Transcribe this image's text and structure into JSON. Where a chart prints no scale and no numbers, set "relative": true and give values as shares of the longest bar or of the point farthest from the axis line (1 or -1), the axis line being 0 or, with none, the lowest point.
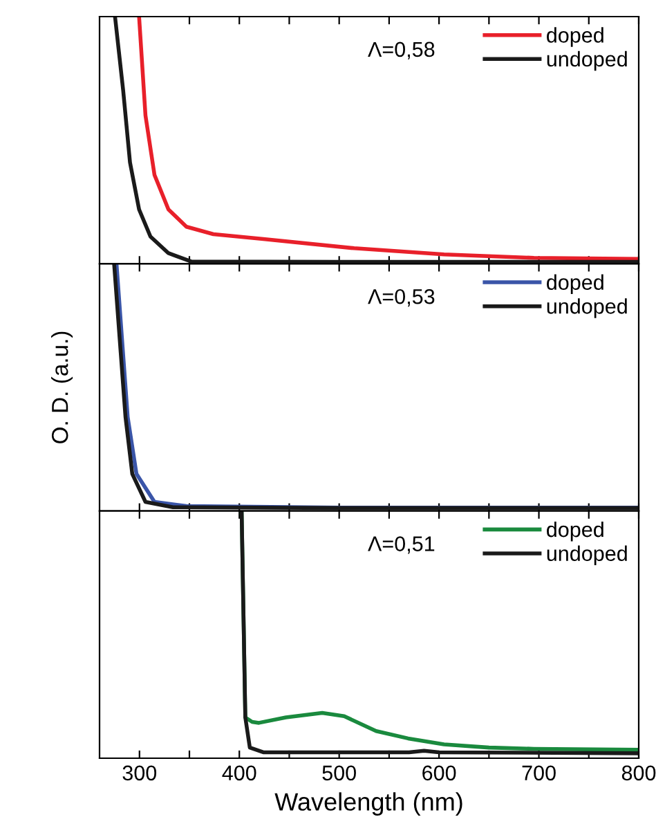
{
  "chart_data": [
    {
      "type": "line",
      "relative": true,
      "xlim": [
        260,
        800
      ],
      "xticks": [
        {
          "value": 300,
          "label": null
        },
        {
          "value": 350,
          "label": null
        },
        {
          "value": 400,
          "label": null
        },
        {
          "value": 450,
          "label": null
        },
        {
          "value": 500,
          "label": null
        },
        {
          "value": 550,
          "label": null
        },
        {
          "value": 600,
          "label": null
        },
        {
          "value": 650,
          "label": null
        },
        {
          "value": 700,
          "label": null
        },
        {
          "value": 750,
          "label": null
        },
        {
          "value": 800,
          "label": null
        }
      ],
      "tick_labels": false,
      "legend": "top right",
      "annotations": [
        "Λ=0,58"
      ],
      "series": [
        {
          "name": "doped",
          "color": "#e8202a",
          "x": [
            299.6,
            306,
            315,
            329,
            347,
            374,
            424,
            515,
            605,
            695,
            800
          ],
          "values": [
            1,
            0.6,
            0.36,
            0.22,
            0.15,
            0.12,
            0.1,
            0.063,
            0.038,
            0.024,
            0.02
          ]
        },
        {
          "name": "undoped",
          "color": "#1a1a1a",
          "x": [
            275.5,
            283.7,
            290.5,
            299.6,
            311,
            329,
            352,
            500,
            800
          ],
          "values": [
            1,
            0.7,
            0.41,
            0.22,
            0.11,
            0.043,
            0.009,
            0.008,
            0.008
          ]
        }
      ]
    },
    {
      "type": "line",
      "relative": true,
      "xlim": [
        260,
        800
      ],
      "xticks": [
        {
          "value": 300,
          "label": null
        },
        {
          "value": 350,
          "label": null
        },
        {
          "value": 400,
          "label": null
        },
        {
          "value": 450,
          "label": null
        },
        {
          "value": 500,
          "label": null
        },
        {
          "value": 550,
          "label": null
        },
        {
          "value": 600,
          "label": null
        },
        {
          "value": 650,
          "label": null
        },
        {
          "value": 700,
          "label": null
        },
        {
          "value": 750,
          "label": null
        },
        {
          "value": 800,
          "label": null
        }
      ],
      "tick_labels": false,
      "legend": "top right",
      "ylabel": "O. D. (a.u.)",
      "annotations": [
        "Λ=0,53"
      ],
      "series": [
        {
          "name": "doped",
          "color": "#3a55a8",
          "x": [
            277,
            288.2,
            297,
            315,
            347,
            500,
            800
          ],
          "values": [
            1,
            0.38,
            0.15,
            0.037,
            0.02,
            0.014,
            0.014
          ]
        },
        {
          "name": "undoped",
          "color": "#1a1a1a",
          "x": [
            274.6,
            286,
            292.8,
            306,
            333.6,
            500,
            800
          ],
          "values": [
            1,
            0.38,
            0.15,
            0.037,
            0.015,
            0.012,
            0.012
          ]
        }
      ]
    },
    {
      "type": "line",
      "relative": true,
      "xlim": [
        260,
        800
      ],
      "xticks": [
        300,
        {
          "value": 350,
          "label": null
        },
        400,
        {
          "value": 450,
          "label": null
        },
        500,
        {
          "value": 550,
          "label": null
        },
        600,
        {
          "value": 650,
          "label": null
        },
        700,
        {
          "value": 750,
          "label": null
        },
        800
      ],
      "tick_labels": "x",
      "legend": "top right",
      "xlabel": "Wavelength (nm)",
      "annotations": [
        "Λ=0,51"
      ],
      "series": [
        {
          "name": "doped",
          "color": "#1a8a3e",
          "x": [
            402.3,
            406,
            412.8,
            419.6,
            446.7,
            483,
            505,
            537,
            569,
            605,
            650,
            695,
            800
          ],
          "values": [
            1,
            0.165,
            0.147,
            0.143,
            0.165,
            0.183,
            0.17,
            0.11,
            0.08,
            0.056,
            0.043,
            0.038,
            0.034
          ]
        },
        {
          "name": "undoped",
          "color": "#1a1a1a",
          "x": [
            402.3,
            406,
            410.5,
            424,
            500,
            570,
            585,
            600,
            800
          ],
          "values": [
            1,
            0.165,
            0.043,
            0.024,
            0.024,
            0.024,
            0.03,
            0.024,
            0.02
          ]
        }
      ]
    }
  ]
}
